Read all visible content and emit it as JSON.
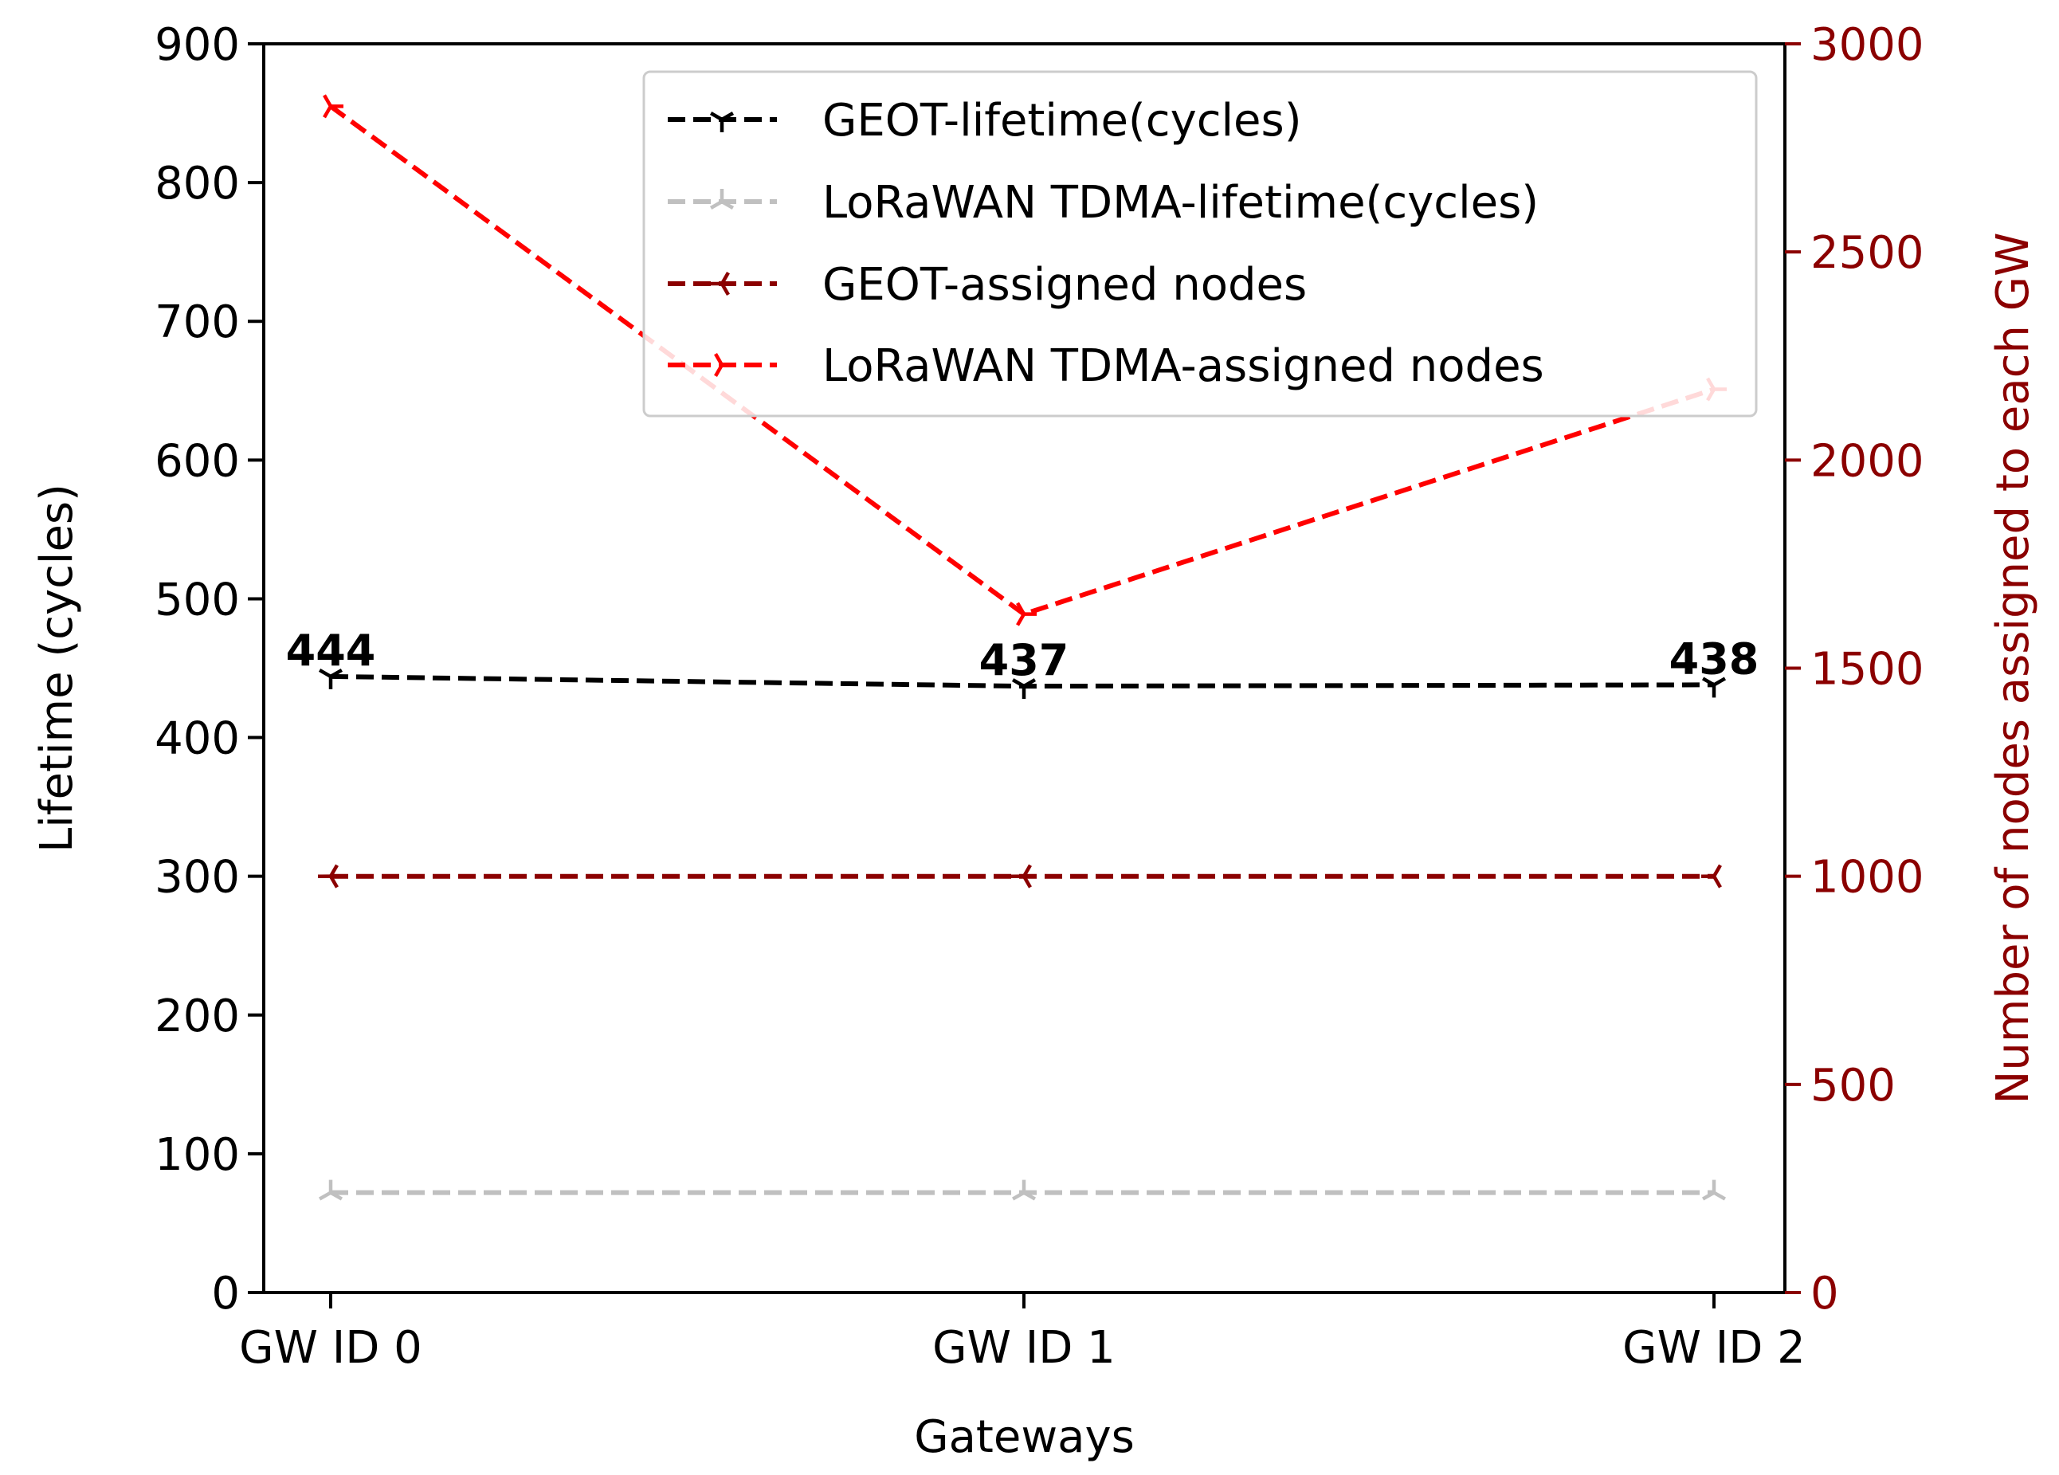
{
  "chart_data": {
    "type": "line",
    "categories": [
      "GW ID 0",
      "GW ID 1",
      "GW ID 2"
    ],
    "xlabel": "Gateways",
    "ylabel": "Lifetime (cycles)",
    "ylabel_right": "Number of nodes assigned to each GW",
    "ylim": [
      0,
      900
    ],
    "ylim_right": [
      0,
      3000
    ],
    "yticks": [
      0,
      100,
      200,
      300,
      400,
      500,
      600,
      700,
      800,
      900
    ],
    "yticks_right": [
      0,
      500,
      1000,
      1500,
      2000,
      2500,
      3000
    ],
    "legend_position": "top-right",
    "right_axis_color": "#8b0000",
    "series": [
      {
        "name": "GEOT-lifetime(cycles)",
        "axis": "left",
        "color": "#000000",
        "marker": "tri_down",
        "values": [
          444,
          437,
          438
        ],
        "labels": [
          "444",
          "437",
          "438"
        ]
      },
      {
        "name": "LoRaWAN TDMA-lifetime(cycles)",
        "axis": "left",
        "color": "#c0c0c0",
        "marker": "tri_up",
        "values": [
          72,
          72,
          72
        ]
      },
      {
        "name": "GEOT-assigned nodes",
        "axis": "right",
        "color": "#8b0000",
        "marker": "tri_left",
        "values": [
          1000,
          1000,
          1000
        ]
      },
      {
        "name": "LoRaWAN TDMA-assigned nodes",
        "axis": "right",
        "color": "#ff0000",
        "marker": "tri_right",
        "values": [
          2850,
          1630,
          2170
        ]
      }
    ]
  }
}
